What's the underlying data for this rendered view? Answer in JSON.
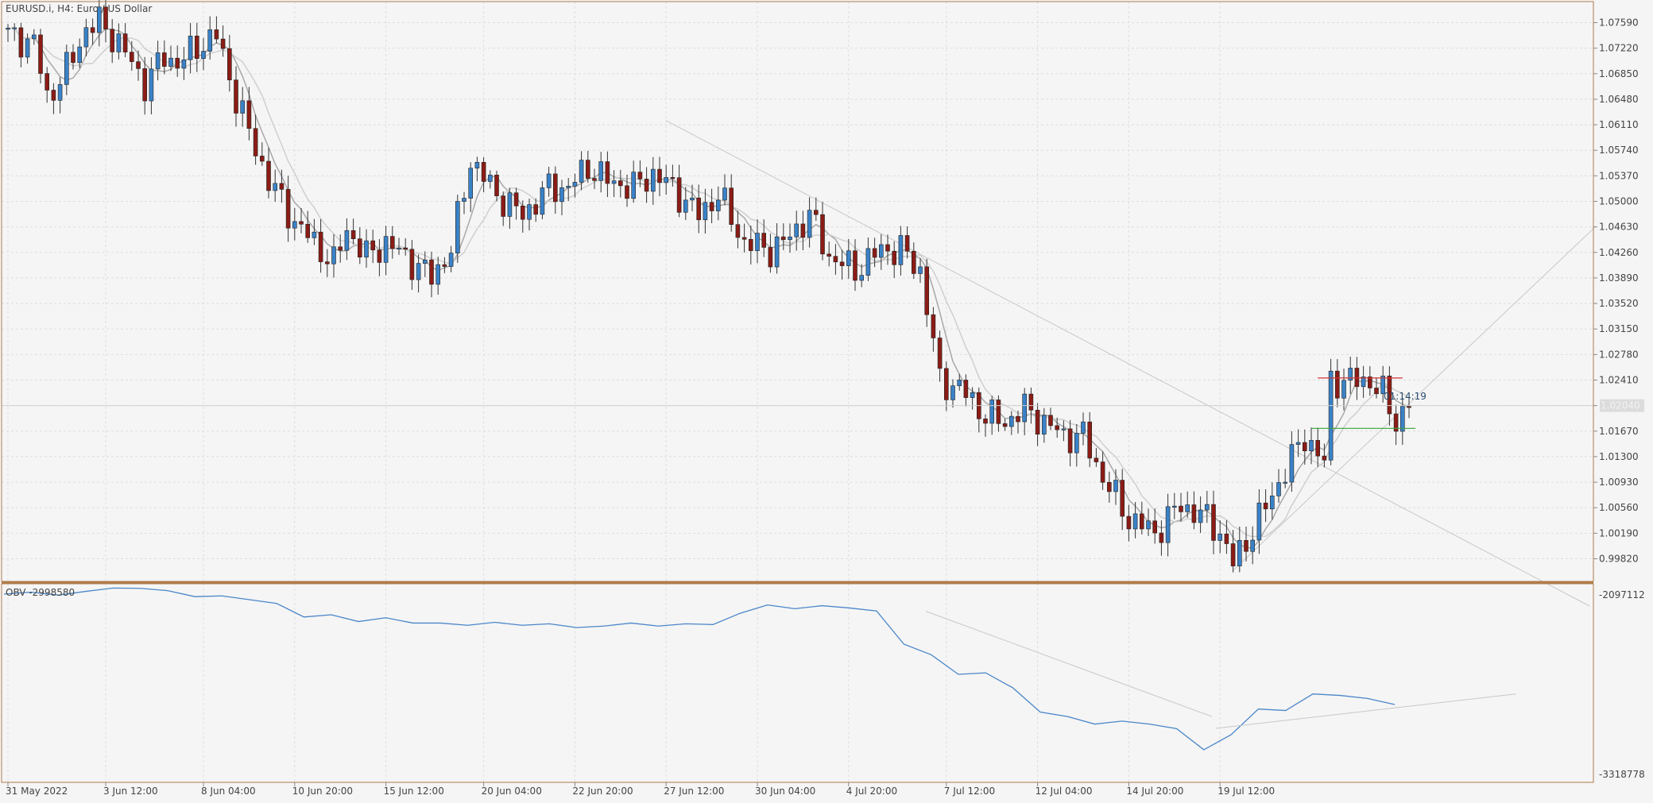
{
  "header": {
    "symbol_text": "EURUSD.i, H4:  Euro / US Dollar"
  },
  "colors": {
    "frame": "#b07c4a",
    "grid": "#dedede",
    "bull": "#3a82c8",
    "bear": "#8b1c16",
    "wick": "#333333",
    "ma1": "#a8a8a8",
    "ma2": "#cfcfcf",
    "obv_line": "#4a86c8",
    "trend": "#c8c8c8",
    "resistance": "#d23232",
    "support": "#3aa03a",
    "text": "#444444"
  },
  "chart_data": [
    {
      "type": "candlestick",
      "title": "EURUSD.i, H4:  Euro / US Dollar",
      "ylim": [
        0.9945,
        1.0785
      ],
      "y_ticks": [
        "1.07590",
        "1.07220",
        "1.06850",
        "1.06480",
        "1.06110",
        "1.05740",
        "1.05370",
        "1.05000",
        "1.04630",
        "1.04260",
        "1.03890",
        "1.03520",
        "1.03150",
        "1.02780",
        "1.02410",
        "1.02040",
        "1.01670",
        "1.01300",
        "1.00930",
        "1.00560",
        "1.00190",
        "0.99820"
      ],
      "current_price_label": "1.02040",
      "countdown_label": "01:14:19",
      "levels": {
        "resistance": 1.0244,
        "support": 1.0171
      },
      "bar_count": 200,
      "anchors": [
        [
          0,
          1.074
        ],
        [
          4,
          1.073
        ],
        [
          6,
          1.065
        ],
        [
          9,
          1.069
        ],
        [
          12,
          1.075
        ],
        [
          14,
          1.076
        ],
        [
          17,
          1.073
        ],
        [
          21,
          1.067
        ],
        [
          24,
          1.071
        ],
        [
          26,
          1.07
        ],
        [
          30,
          1.073
        ],
        [
          32,
          1.074
        ],
        [
          35,
          1.065
        ],
        [
          37,
          1.06
        ],
        [
          40,
          1.053
        ],
        [
          44,
          1.047
        ],
        [
          47,
          1.044
        ],
        [
          50,
          1.041
        ],
        [
          52,
          1.046
        ],
        [
          55,
          1.042
        ],
        [
          58,
          1.044
        ],
        [
          61,
          1.042
        ],
        [
          65,
          1.039
        ],
        [
          68,
          1.043
        ],
        [
          71,
          1.056
        ],
        [
          75,
          1.051
        ],
        [
          79,
          1.048
        ],
        [
          83,
          1.052
        ],
        [
          86,
          1.052
        ],
        [
          89,
          1.055
        ],
        [
          92,
          1.053
        ],
        [
          96,
          1.052
        ],
        [
          99,
          1.054
        ],
        [
          102,
          1.052
        ],
        [
          106,
          1.048
        ],
        [
          109,
          1.051
        ],
        [
          113,
          1.044
        ],
        [
          117,
          1.043
        ],
        [
          119,
          1.044
        ],
        [
          123,
          1.048
        ],
        [
          126,
          1.042
        ],
        [
          130,
          1.04
        ],
        [
          134,
          1.043
        ],
        [
          137,
          1.043
        ],
        [
          140,
          1.04
        ],
        [
          143,
          1.024
        ],
        [
          146,
          1.023
        ],
        [
          150,
          1.019
        ],
        [
          153,
          1.018
        ],
        [
          156,
          1.02
        ],
        [
          159,
          1.018
        ],
        [
          162,
          1.016
        ],
        [
          165,
          1.016
        ],
        [
          168,
          1.01
        ],
        [
          172,
          1.004
        ],
        [
          176,
          1.002
        ],
        [
          180,
          1.006
        ],
        [
          184,
          1.004
        ],
        [
          186,
          1.002
        ],
        [
          188,
          0.9975
        ],
        [
          192,
          1.004
        ],
        [
          196,
          1.011
        ],
        [
          199,
          1.016
        ],
        [
          202,
          1.012
        ],
        [
          203,
          1.024
        ],
        [
          206,
          1.024
        ],
        [
          209,
          1.024
        ],
        [
          211,
          1.022
        ],
        [
          213,
          1.018
        ],
        [
          215,
          1.021
        ]
      ],
      "x_labels": [
        [
          "31 May 2022",
          0
        ],
        [
          "3 Jun 12:00",
          15
        ],
        [
          "8 Jun 04:00",
          30
        ],
        [
          "10 Jun 20:00",
          44
        ],
        [
          "15 Jun 12:00",
          58
        ],
        [
          "20 Jun 04:00",
          73
        ],
        [
          "22 Jun 20:00",
          87
        ],
        [
          "27 Jun 12:00",
          101
        ],
        [
          "30 Jun 04:00",
          115
        ],
        [
          "4 Jul 20:00",
          129
        ],
        [
          "7 Jul 12:00",
          144
        ],
        [
          "12 Jul 04:00",
          158
        ],
        [
          "14 Jul 20:00",
          172
        ],
        [
          "19 Jul 12:00",
          186
        ]
      ]
    },
    {
      "type": "line",
      "title": "OBV -2998580",
      "series": [
        {
          "name": "OBV",
          "values": [
            -2118000,
            -2105000,
            -2125000,
            -2100000,
            -2078000,
            -2080000,
            -2095000,
            -2135000,
            -2130000,
            -2155000,
            -2180000,
            -2270000,
            -2255000,
            -2300000,
            -2275000,
            -2310000,
            -2310000,
            -2325000,
            -2305000,
            -2325000,
            -2315000,
            -2340000,
            -2330000,
            -2310000,
            -2330000,
            -2315000,
            -2320000,
            -2245000,
            -2190000,
            -2215000,
            -2195000,
            -2210000,
            -2230000,
            -2450000,
            -2520000,
            -2650000,
            -2640000,
            -2740000,
            -2900000,
            -2930000,
            -2980000,
            -2960000,
            -2980000,
            -3010000,
            -3150000,
            -3050000,
            -2880000,
            -2890000,
            -2780000,
            -2790000,
            -2810000,
            -2850000
          ]
        }
      ],
      "ylim": [
        -3318778,
        -2097112
      ],
      "y_ticks": [
        "-2097112",
        "-3318778"
      ],
      "label": "OBV -2998580"
    }
  ]
}
